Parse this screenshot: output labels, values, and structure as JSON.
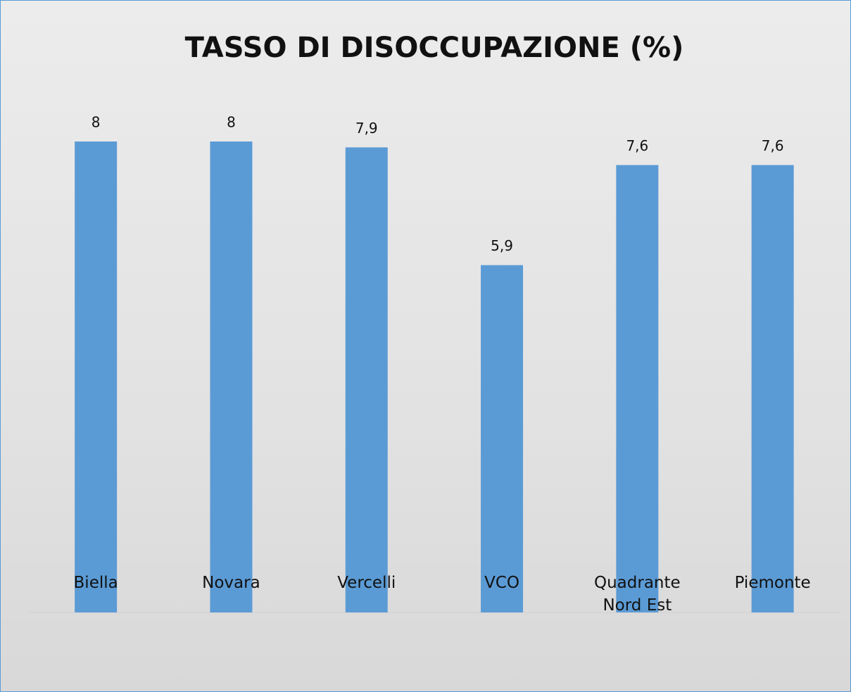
{
  "chart_data": {
    "type": "bar",
    "title": "TASSO DI DISOCCUPAZIONE (%)",
    "categories": [
      "Biella",
      "Novara",
      "Vercelli",
      "VCO",
      "Quadrante Nord Est",
      "Piemonte"
    ],
    "values": [
      8,
      8,
      7.9,
      5.9,
      7.6,
      7.6
    ],
    "value_labels": [
      "8",
      "8",
      "7,9",
      "5,9",
      "7,6",
      "7,6"
    ],
    "color": "#5b9bd5"
  }
}
